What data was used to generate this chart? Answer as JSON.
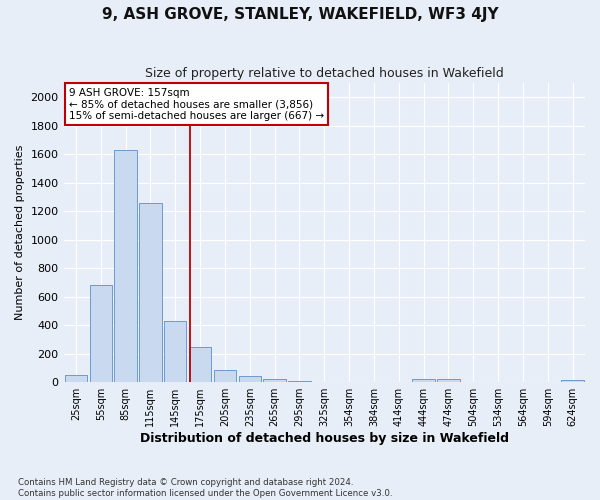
{
  "title": "9, ASH GROVE, STANLEY, WAKEFIELD, WF3 4JY",
  "subtitle": "Size of property relative to detached houses in Wakefield",
  "xlabel": "Distribution of detached houses by size in Wakefield",
  "ylabel": "Number of detached properties",
  "categories": [
    "25sqm",
    "55sqm",
    "85sqm",
    "115sqm",
    "145sqm",
    "175sqm",
    "205sqm",
    "235sqm",
    "265sqm",
    "295sqm",
    "325sqm",
    "354sqm",
    "384sqm",
    "414sqm",
    "444sqm",
    "474sqm",
    "504sqm",
    "534sqm",
    "564sqm",
    "594sqm",
    "624sqm"
  ],
  "values": [
    50,
    680,
    1630,
    1260,
    430,
    250,
    85,
    45,
    25,
    5,
    3,
    0,
    2,
    0,
    25,
    20,
    0,
    0,
    0,
    0,
    15
  ],
  "bar_color": "#c9daf0",
  "bar_edge_color": "#5b8fc9",
  "ylim": [
    0,
    2100
  ],
  "yticks": [
    0,
    200,
    400,
    600,
    800,
    1000,
    1200,
    1400,
    1600,
    1800,
    2000
  ],
  "vline_x": 4.6,
  "vline_color": "#c00000",
  "annotation_text": "9 ASH GROVE: 157sqm\n← 85% of detached houses are smaller (3,856)\n15% of semi-detached houses are larger (667) →",
  "annotation_box_color": "#ffffff",
  "annotation_box_edge_color": "#c00000",
  "footnote": "Contains HM Land Registry data © Crown copyright and database right 2024.\nContains public sector information licensed under the Open Government Licence v3.0.",
  "background_color": "#e8eef8",
  "grid_color": "#ffffff",
  "title_fontsize": 11,
  "subtitle_fontsize": 9,
  "ylabel_fontsize": 8,
  "xlabel_fontsize": 9,
  "ytick_fontsize": 8,
  "xtick_fontsize": 7
}
